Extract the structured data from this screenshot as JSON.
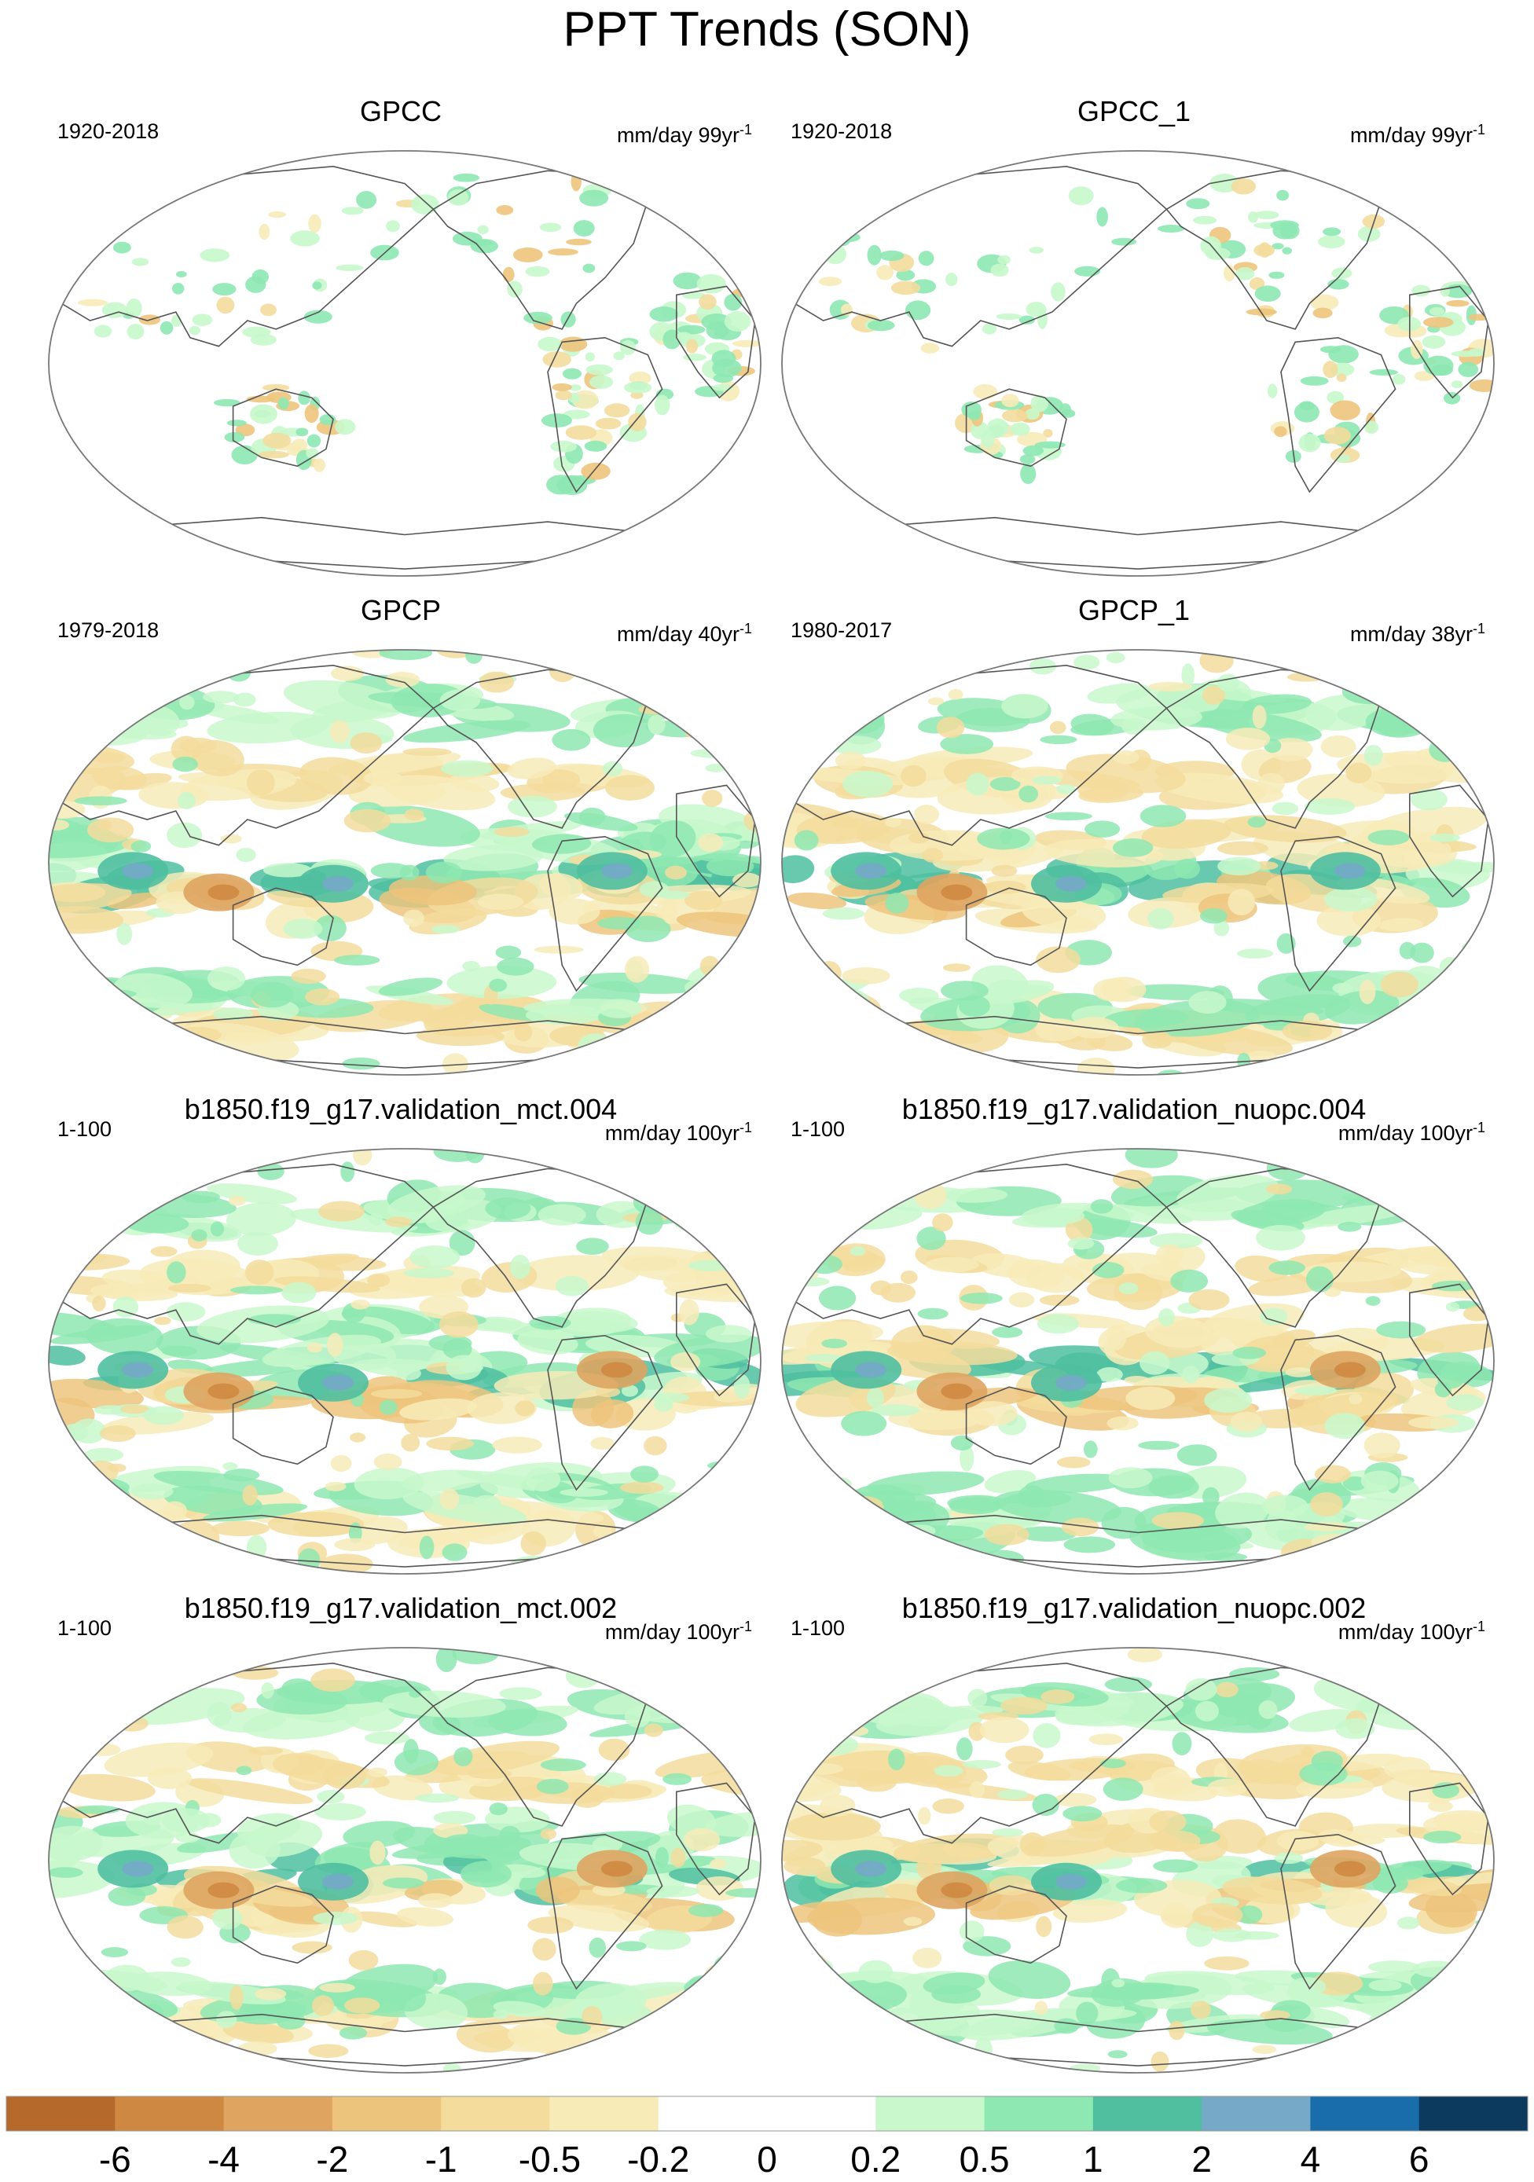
{
  "figure": {
    "title": "PPT Trends (SON)"
  },
  "panels": [
    {
      "id": "gpcc",
      "title": "GPCC",
      "period": "1920-2018",
      "units_text": "mm/day 99yr",
      "units_sup": "-1"
    },
    {
      "id": "gpcc_1",
      "title": "GPCC_1",
      "period": "1920-2018",
      "units_text": "mm/day 99yr",
      "units_sup": "-1"
    },
    {
      "id": "gpcp",
      "title": "GPCP",
      "period": "1979-2018",
      "units_text": "mm/day 40yr",
      "units_sup": "-1"
    },
    {
      "id": "gpcp_1",
      "title": "GPCP_1",
      "period": "1980-2017",
      "units_text": "mm/day 38yr",
      "units_sup": "-1"
    },
    {
      "id": "mct004",
      "title": "b1850.f19_g17.validation_mct.004",
      "period": "1-100",
      "units_text": "mm/day 100yr",
      "units_sup": "-1"
    },
    {
      "id": "nuopc004",
      "title": "b1850.f19_g17.validation_nuopc.004",
      "period": "1-100",
      "units_text": "mm/day 100yr",
      "units_sup": "-1"
    },
    {
      "id": "mct002",
      "title": "b1850.f19_g17.validation_mct.002",
      "period": "1-100",
      "units_text": "mm/day 100yr",
      "units_sup": "-1"
    },
    {
      "id": "nuopc002",
      "title": "b1850.f19_g17.validation_nuopc.002",
      "period": "1-100",
      "units_text": "mm/day 100yr",
      "units_sup": "-1"
    }
  ],
  "colorbar": {
    "colors": [
      "#b5692a",
      "#cf8841",
      "#dea460",
      "#edc47c",
      "#f3dc9c",
      "#f7ebb8",
      "#ffffff",
      "#ffffff",
      "#c8f8cc",
      "#8ee8b2",
      "#4fbfa0",
      "#76a9c8",
      "#1a6dab",
      "#0c3a5e"
    ],
    "tick_labels": [
      "-6",
      "-4",
      "-2",
      "-1",
      "-0.5",
      "-0.2",
      "0",
      "0.2",
      "0.5",
      "1",
      "2",
      "4",
      "6"
    ]
  }
}
